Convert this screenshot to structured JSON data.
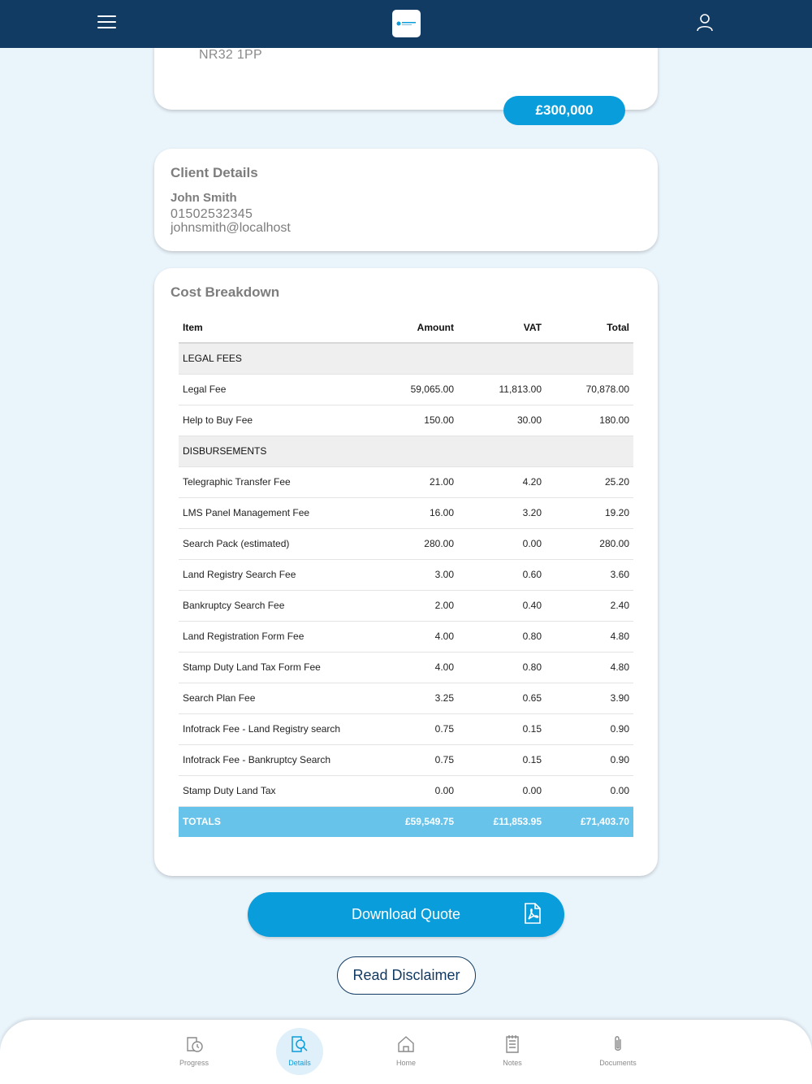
{
  "header": {
    "logo_icon": "firm-logo",
    "menu_icon": "hamburger-icon",
    "user_icon": "user-icon"
  },
  "property": {
    "postcode": "NR32 1PP",
    "price": "£300,000"
  },
  "client": {
    "title": "Client Details",
    "name": "John Smith",
    "phone": "01502532345",
    "email": "johnsmith@localhost"
  },
  "costs": {
    "title": "Cost Breakdown",
    "columns": [
      "Item",
      "Amount",
      "VAT",
      "Total"
    ],
    "sections": [
      {
        "label": "LEGAL FEES",
        "rows": [
          {
            "item": "Legal Fee",
            "amount": "59,065.00",
            "vat": "11,813.00",
            "total": "70,878.00"
          },
          {
            "item": "Help to Buy Fee",
            "amount": "150.00",
            "vat": "30.00",
            "total": "180.00"
          }
        ]
      },
      {
        "label": "DISBURSEMENTS",
        "rows": [
          {
            "item": "Telegraphic Transfer Fee",
            "amount": "21.00",
            "vat": "4.20",
            "total": "25.20"
          },
          {
            "item": "LMS Panel Management Fee",
            "amount": "16.00",
            "vat": "3.20",
            "total": "19.20"
          },
          {
            "item": "Search Pack (estimated)",
            "amount": "280.00",
            "vat": "0.00",
            "total": "280.00"
          },
          {
            "item": "Land Registry Search Fee",
            "amount": "3.00",
            "vat": "0.60",
            "total": "3.60"
          },
          {
            "item": "Bankruptcy Search Fee",
            "amount": "2.00",
            "vat": "0.40",
            "total": "2.40"
          },
          {
            "item": "Land Registration Form Fee",
            "amount": "4.00",
            "vat": "0.80",
            "total": "4.80"
          },
          {
            "item": "Stamp Duty Land Tax Form Fee",
            "amount": "4.00",
            "vat": "0.80",
            "total": "4.80"
          },
          {
            "item": "Search Plan Fee",
            "amount": "3.25",
            "vat": "0.65",
            "total": "3.90"
          },
          {
            "item": "Infotrack Fee - Land Registry search",
            "amount": "0.75",
            "vat": "0.15",
            "total": "0.90"
          },
          {
            "item": "Infotrack Fee - Bankruptcy Search",
            "amount": "0.75",
            "vat": "0.15",
            "total": "0.90"
          },
          {
            "item": "Stamp Duty Land Tax",
            "amount": "0.00",
            "vat": "0.00",
            "total": "0.00"
          }
        ]
      }
    ],
    "totals": {
      "label": "TOTALS",
      "amount": "£59,549.75",
      "vat": "£11,853.95",
      "total": "£71,403.70"
    }
  },
  "actions": {
    "download_label": "Download Quote",
    "download_icon": "pdf-icon",
    "disclaimer_label": "Read Disclaimer"
  },
  "nav": {
    "items": [
      {
        "label": "Progress",
        "icon": "progress-icon",
        "active": false
      },
      {
        "label": "Details",
        "icon": "details-icon",
        "active": true
      },
      {
        "label": "Home",
        "icon": "home-icon",
        "active": false
      },
      {
        "label": "Notes",
        "icon": "notes-icon",
        "active": false
      },
      {
        "label": "Documents",
        "icon": "paperclip-icon",
        "active": false
      }
    ]
  },
  "colors": {
    "header": "#123b64",
    "accent": "#0a9ddb",
    "totals_row": "#67c3ea",
    "background": "#eaf4fb"
  }
}
